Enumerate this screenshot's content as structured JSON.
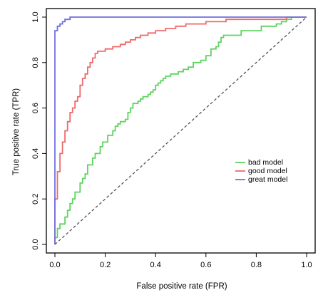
{
  "chart_data": {
    "type": "line",
    "title": "",
    "xlabel": "False positive rate (FPR)",
    "ylabel": "True positive rate (TPR)",
    "xlim": [
      0,
      1
    ],
    "ylim": [
      0,
      1
    ],
    "x_ticks": [
      0.0,
      0.2,
      0.4,
      0.6,
      0.8,
      1.0
    ],
    "y_ticks": [
      0.0,
      0.2,
      0.4,
      0.6,
      0.8,
      1.0
    ],
    "x_tick_labels": [
      "0.0",
      "0.2",
      "0.4",
      "0.6",
      "0.8",
      "1.0"
    ],
    "y_tick_labels": [
      "0.0",
      "0.2",
      "0.4",
      "0.6",
      "0.8",
      "1.0"
    ],
    "grid": false,
    "legend_position": "center-right",
    "reference_line": {
      "x": [
        0,
        1
      ],
      "y": [
        0,
        1
      ],
      "style": "dashed",
      "color": "#555555"
    },
    "series": [
      {
        "name": "bad model",
        "color": "#5fd35f",
        "x": [
          0.0,
          0.0,
          0.01,
          0.01,
          0.02,
          0.02,
          0.04,
          0.04,
          0.05,
          0.05,
          0.06,
          0.06,
          0.07,
          0.07,
          0.08,
          0.08,
          0.1,
          0.1,
          0.11,
          0.11,
          0.12,
          0.12,
          0.13,
          0.13,
          0.15,
          0.15,
          0.16,
          0.16,
          0.18,
          0.18,
          0.19,
          0.19,
          0.21,
          0.21,
          0.23,
          0.23,
          0.24,
          0.24,
          0.25,
          0.25,
          0.26,
          0.26,
          0.28,
          0.28,
          0.29,
          0.29,
          0.3,
          0.3,
          0.31,
          0.31,
          0.33,
          0.33,
          0.34,
          0.34,
          0.35,
          0.35,
          0.37,
          0.37,
          0.38,
          0.38,
          0.39,
          0.39,
          0.4,
          0.4,
          0.41,
          0.41,
          0.42,
          0.42,
          0.43,
          0.43,
          0.44,
          0.44,
          0.46,
          0.46,
          0.49,
          0.49,
          0.51,
          0.51,
          0.53,
          0.53,
          0.55,
          0.55,
          0.58,
          0.58,
          0.6,
          0.6,
          0.62,
          0.62,
          0.64,
          0.64,
          0.65,
          0.65,
          0.66,
          0.66,
          0.67,
          0.67,
          0.74,
          0.74,
          0.82,
          0.82,
          0.88,
          0.88,
          0.9,
          0.9,
          0.92,
          0.92,
          0.94,
          0.94,
          1.0
        ],
        "y": [
          0.0,
          0.03,
          0.03,
          0.07,
          0.07,
          0.09,
          0.09,
          0.12,
          0.12,
          0.15,
          0.15,
          0.18,
          0.18,
          0.2,
          0.2,
          0.23,
          0.23,
          0.27,
          0.27,
          0.29,
          0.29,
          0.31,
          0.31,
          0.35,
          0.35,
          0.38,
          0.38,
          0.4,
          0.4,
          0.43,
          0.43,
          0.45,
          0.45,
          0.48,
          0.48,
          0.5,
          0.5,
          0.52,
          0.52,
          0.53,
          0.53,
          0.54,
          0.54,
          0.55,
          0.55,
          0.58,
          0.58,
          0.6,
          0.6,
          0.62,
          0.62,
          0.63,
          0.63,
          0.64,
          0.64,
          0.65,
          0.65,
          0.66,
          0.66,
          0.67,
          0.67,
          0.68,
          0.68,
          0.7,
          0.7,
          0.71,
          0.71,
          0.72,
          0.72,
          0.73,
          0.73,
          0.74,
          0.74,
          0.75,
          0.75,
          0.76,
          0.76,
          0.77,
          0.77,
          0.78,
          0.78,
          0.8,
          0.8,
          0.81,
          0.81,
          0.83,
          0.83,
          0.86,
          0.86,
          0.87,
          0.87,
          0.89,
          0.89,
          0.91,
          0.91,
          0.92,
          0.92,
          0.94,
          0.94,
          0.96,
          0.96,
          0.97,
          0.97,
          0.98,
          0.98,
          0.99,
          0.99,
          1.0,
          1.0
        ]
      },
      {
        "name": "good model",
        "color": "#ee6a6a",
        "x": [
          0.0,
          0.0,
          0.01,
          0.01,
          0.02,
          0.02,
          0.03,
          0.03,
          0.04,
          0.04,
          0.05,
          0.05,
          0.06,
          0.06,
          0.07,
          0.07,
          0.08,
          0.08,
          0.09,
          0.09,
          0.1,
          0.1,
          0.11,
          0.11,
          0.12,
          0.12,
          0.13,
          0.13,
          0.14,
          0.14,
          0.15,
          0.15,
          0.16,
          0.16,
          0.17,
          0.17,
          0.2,
          0.2,
          0.23,
          0.23,
          0.26,
          0.26,
          0.28,
          0.28,
          0.3,
          0.3,
          0.32,
          0.32,
          0.34,
          0.34,
          0.37,
          0.37,
          0.4,
          0.4,
          0.44,
          0.44,
          0.48,
          0.48,
          0.52,
          0.52,
          0.56,
          0.56,
          0.6,
          0.6,
          0.64,
          0.64,
          0.68,
          0.68,
          0.92,
          0.92,
          1.0
        ],
        "y": [
          0.0,
          0.2,
          0.2,
          0.32,
          0.32,
          0.4,
          0.4,
          0.45,
          0.45,
          0.5,
          0.5,
          0.54,
          0.54,
          0.58,
          0.58,
          0.6,
          0.6,
          0.63,
          0.63,
          0.65,
          0.65,
          0.7,
          0.7,
          0.73,
          0.73,
          0.75,
          0.75,
          0.78,
          0.78,
          0.8,
          0.8,
          0.82,
          0.82,
          0.84,
          0.84,
          0.85,
          0.85,
          0.86,
          0.86,
          0.87,
          0.87,
          0.88,
          0.88,
          0.89,
          0.89,
          0.9,
          0.9,
          0.91,
          0.91,
          0.92,
          0.92,
          0.93,
          0.93,
          0.94,
          0.94,
          0.95,
          0.95,
          0.96,
          0.96,
          0.97,
          0.97,
          0.97,
          0.97,
          0.98,
          0.98,
          0.98,
          0.98,
          0.99,
          0.99,
          1.0,
          1.0
        ]
      },
      {
        "name": "great model",
        "color": "#6f6fe0",
        "x": [
          0.0,
          0.0,
          0.01,
          0.01,
          0.02,
          0.02,
          0.03,
          0.03,
          0.04,
          0.04,
          0.05,
          0.05,
          0.06,
          0.06,
          1.0
        ],
        "y": [
          0.0,
          0.94,
          0.94,
          0.96,
          0.96,
          0.97,
          0.97,
          0.98,
          0.98,
          0.99,
          0.99,
          0.99,
          0.99,
          1.0,
          1.0
        ]
      }
    ]
  }
}
